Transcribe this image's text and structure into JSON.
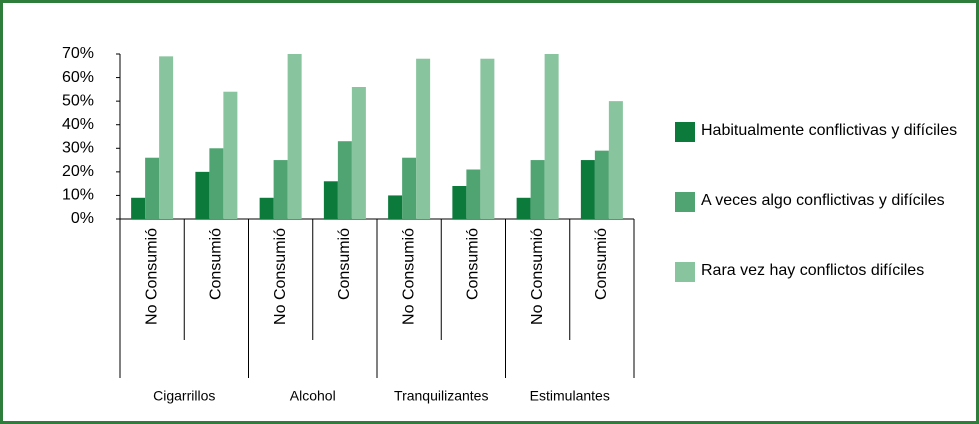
{
  "chart_data": {
    "type": "bar",
    "categories": [
      "No Consumió",
      "Consumió",
      "No Consumió",
      "Consumió",
      "No Consumió",
      "Consumió",
      "No Consumió",
      "Consumió"
    ],
    "groups": [
      "Cigarrillos",
      "Alcohol",
      "Tranquilizantes",
      "Estimulantes"
    ],
    "series": [
      {
        "name": "Habitualmente conflictivas y difíciles",
        "color": "#0b7a3b",
        "values": [
          9,
          20,
          9,
          16,
          10,
          14,
          9,
          25
        ]
      },
      {
        "name": "A veces algo conflictivas y difíciles",
        "color": "#4fa472",
        "values": [
          26,
          30,
          25,
          33,
          26,
          21,
          25,
          29
        ]
      },
      {
        "name": "Rara vez hay conflictos difíciles",
        "color": "#88c49d",
        "values": [
          69,
          54,
          70,
          56,
          68,
          68,
          70,
          50
        ]
      }
    ],
    "ylim": [
      0,
      70
    ],
    "yticks": [
      {
        "value": 0,
        "label": "0%"
      },
      {
        "value": 10,
        "label": "10%"
      },
      {
        "value": 20,
        "label": "20%"
      },
      {
        "value": 30,
        "label": "30%"
      },
      {
        "value": 40,
        "label": "40%"
      },
      {
        "value": 50,
        "label": "50%"
      },
      {
        "value": 60,
        "label": "60%"
      },
      {
        "value": 70,
        "label": "70%"
      }
    ],
    "legend": "right"
  }
}
